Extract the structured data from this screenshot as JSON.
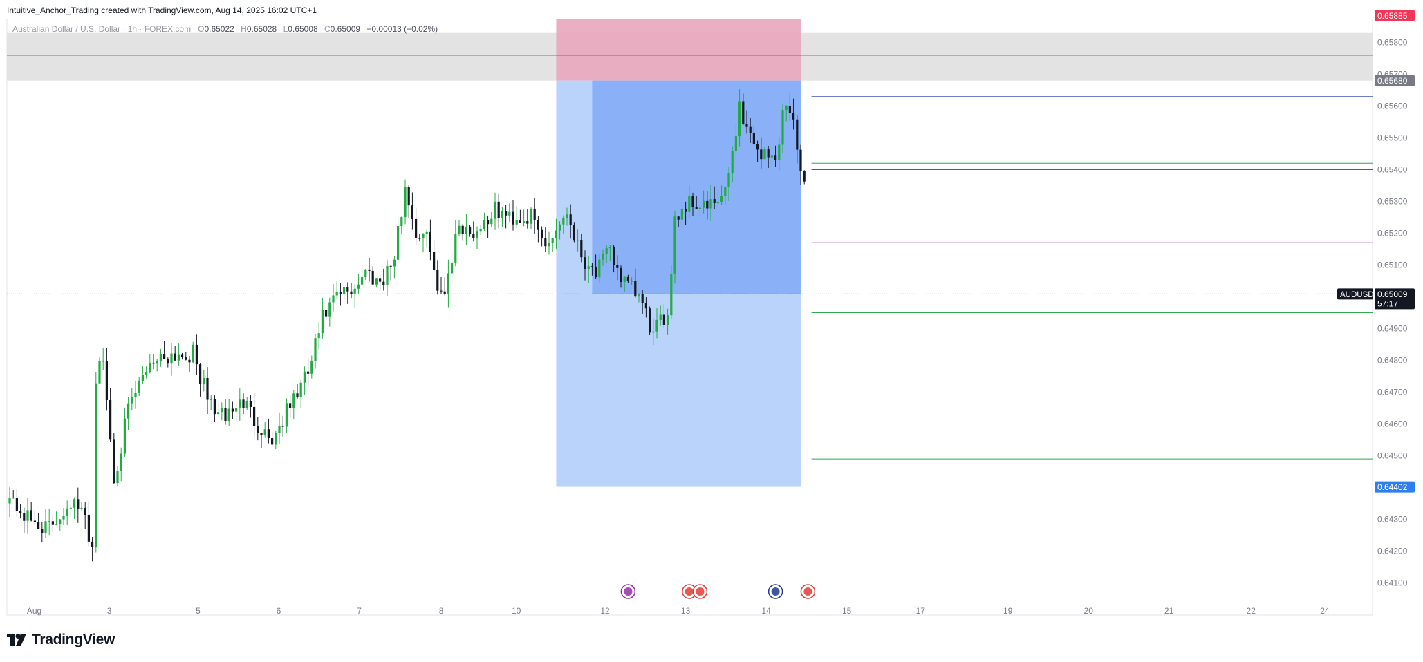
{
  "caption": "Intuitive_Anchor_Trading created with TradingView.com, Aug 14, 2025 16:02 UTC+1",
  "legend": {
    "symbol": "Australian Dollar / U.S. Dollar · 1h · FOREX.com",
    "o_key": "O",
    "o": "0.65022",
    "h_key": "H",
    "h": "0.65028",
    "l_key": "L",
    "l": "0.65008",
    "c_key": "C",
    "c": "0.65009",
    "change": "−0.00013 (−0.02%)"
  },
  "brand": {
    "name": "TradingView"
  },
  "colors": {
    "up": "#22ab40",
    "down": "#131722",
    "target_zone": "#b9d3fb",
    "target_zone_dark": "#8ab0f8",
    "stop_zone": "#e8a6bd",
    "supply_zone": "#e3e3e3",
    "purple_line": "#9c27b0",
    "green_line": "#2fa84f",
    "blue_line": "#3f51b5",
    "stop_label": "#f23658",
    "target_label": "#2f7ef0",
    "entry_label": "#787b86",
    "price_label": "#131722"
  },
  "chart_data": {
    "type": "candlestick",
    "symbol": "AUDUSD",
    "y_range": [
      0.6405,
      0.6595
    ],
    "y_ticks": [
      "0.65800",
      "0.65700",
      "0.65600",
      "0.65500",
      "0.65400",
      "0.65300",
      "0.65200",
      "0.65100",
      "0.65000",
      "0.64900",
      "0.64800",
      "0.64700",
      "0.64600",
      "0.64500",
      "0.64400",
      "0.64300",
      "0.64200",
      "0.64100"
    ],
    "x_labels": [
      "Aug",
      "3",
      "5",
      "6",
      "7",
      "8",
      "10",
      "12",
      "13",
      "14",
      "15",
      "17",
      "19",
      "20",
      "21",
      "22",
      "24"
    ],
    "candle_count": 222,
    "current_price": "0.65009",
    "countdown": "57:17",
    "position": {
      "direction": "short",
      "entry": "0.65680",
      "stop": "0.65885",
      "target": "0.64402"
    },
    "zones": [
      {
        "type": "supply",
        "top": 0.6583,
        "bottom": 0.6568
      }
    ],
    "levels": [
      {
        "price": 0.6576,
        "color": "purple",
        "from": "start"
      },
      {
        "price": 0.6563,
        "color": "blue",
        "from": "last-candle"
      },
      {
        "price": 0.6542,
        "color": "green",
        "from": "last-candle"
      },
      {
        "price": 0.654,
        "color": "purple",
        "from": "last-candle"
      },
      {
        "price": 0.6517,
        "color": "purple",
        "from": "last-candle"
      },
      {
        "price": 0.6495,
        "color": "green",
        "from": "last-candle"
      },
      {
        "price": 0.6449,
        "color": "green",
        "from": "last-candle"
      }
    ],
    "path": [
      [
        0,
        0.6438
      ],
      [
        6,
        0.643
      ],
      [
        12,
        0.6427
      ],
      [
        18,
        0.6436
      ],
      [
        22,
        0.643
      ],
      [
        24,
        0.6421
      ],
      [
        25,
        0.6475
      ],
      [
        27,
        0.648
      ],
      [
        30,
        0.6443
      ],
      [
        34,
        0.6464
      ],
      [
        40,
        0.648
      ],
      [
        46,
        0.6482
      ],
      [
        52,
        0.6482
      ],
      [
        56,
        0.6468
      ],
      [
        60,
        0.6462
      ],
      [
        66,
        0.6467
      ],
      [
        70,
        0.646
      ],
      [
        74,
        0.6455
      ],
      [
        80,
        0.6468
      ],
      [
        84,
        0.6476
      ],
      [
        88,
        0.6493
      ],
      [
        92,
        0.65
      ],
      [
        96,
        0.6502
      ],
      [
        100,
        0.6508
      ],
      [
        104,
        0.6505
      ],
      [
        108,
        0.6512
      ],
      [
        111,
        0.6535
      ],
      [
        114,
        0.652
      ],
      [
        118,
        0.6517
      ],
      [
        120,
        0.65
      ],
      [
        122,
        0.6503
      ],
      [
        126,
        0.6523
      ],
      [
        130,
        0.652
      ],
      [
        136,
        0.6527
      ],
      [
        140,
        0.6525
      ],
      [
        146,
        0.6525
      ],
      [
        150,
        0.6516
      ],
      [
        156,
        0.6527
      ],
      [
        160,
        0.6513
      ],
      [
        164,
        0.6508
      ],
      [
        168,
        0.6514
      ],
      [
        172,
        0.6504
      ],
      [
        176,
        0.65
      ],
      [
        180,
        0.6488
      ],
      [
        184,
        0.6495
      ],
      [
        186,
        0.6525
      ],
      [
        190,
        0.653
      ],
      [
        196,
        0.6528
      ],
      [
        200,
        0.6532
      ],
      [
        204,
        0.656
      ],
      [
        206,
        0.6553
      ],
      [
        210,
        0.6545
      ],
      [
        214,
        0.6543
      ],
      [
        216,
        0.6558
      ],
      [
        218,
        0.656
      ],
      [
        220,
        0.6548
      ],
      [
        224,
        0.6525
      ],
      [
        226,
        0.6522
      ],
      [
        228,
        0.6503
      ],
      [
        229,
        0.6502
      ],
      [
        230,
        0.6501
      ]
    ]
  }
}
